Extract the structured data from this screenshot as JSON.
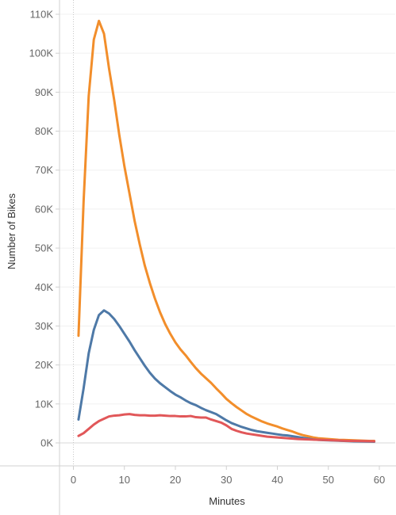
{
  "chart_data": {
    "type": "line",
    "xlabel": "Minutes",
    "ylabel": "Number of Bikes",
    "xlim": [
      -3,
      63
    ],
    "ylim": [
      -5000,
      112000
    ],
    "x_ticks": [
      0,
      10,
      20,
      30,
      40,
      50,
      60
    ],
    "x_tick_labels": [
      "0",
      "10",
      "20",
      "30",
      "40",
      "50",
      "60"
    ],
    "y_ticks": [
      0,
      10000,
      20000,
      30000,
      40000,
      50000,
      60000,
      70000,
      80000,
      90000,
      100000,
      110000
    ],
    "y_tick_labels": [
      "0K",
      "10K",
      "20K",
      "30K",
      "40K",
      "50K",
      "60K",
      "70K",
      "80K",
      "90K",
      "100K",
      "110K"
    ],
    "grid": "horizontal",
    "legend": "none",
    "series": [
      {
        "color": "#f28e2b",
        "x": [
          1,
          2,
          3,
          4,
          5,
          6,
          7,
          8,
          9,
          10,
          11,
          12,
          13,
          14,
          15,
          16,
          17,
          18,
          19,
          20,
          21,
          22,
          23,
          24,
          25,
          26,
          27,
          28,
          29,
          30,
          31,
          32,
          33,
          34,
          35,
          36,
          37,
          38,
          39,
          40,
          41,
          42,
          43,
          44,
          45,
          46,
          47,
          48,
          49,
          50,
          51,
          52,
          53,
          54,
          55,
          56,
          57,
          58,
          59
        ],
        "values": [
          27500,
          62000,
          89000,
          103500,
          108300,
          105000,
          96000,
          88000,
          79000,
          71000,
          64000,
          57000,
          51000,
          45500,
          41000,
          37000,
          33500,
          30500,
          28000,
          25800,
          24000,
          22500,
          20800,
          19200,
          17800,
          16600,
          15400,
          14000,
          12700,
          11300,
          10200,
          9200,
          8300,
          7400,
          6700,
          6100,
          5500,
          5000,
          4600,
          4200,
          3700,
          3300,
          2900,
          2400,
          2000,
          1700,
          1400,
          1200,
          1100,
          1000,
          900,
          800,
          750,
          700,
          650,
          600,
          550,
          500,
          500
        ]
      },
      {
        "color": "#4e79a7",
        "x": [
          1,
          2,
          3,
          4,
          5,
          6,
          7,
          8,
          9,
          10,
          11,
          12,
          13,
          14,
          15,
          16,
          17,
          18,
          19,
          20,
          21,
          22,
          23,
          24,
          25,
          26,
          27,
          28,
          29,
          30,
          31,
          32,
          33,
          34,
          35,
          36,
          37,
          38,
          39,
          40,
          41,
          42,
          43,
          44,
          45,
          46,
          47,
          48,
          49,
          50,
          51,
          52,
          53,
          54,
          55,
          56,
          57,
          58,
          59
        ],
        "values": [
          6000,
          14000,
          23000,
          29000,
          32800,
          34000,
          33200,
          31800,
          30000,
          28000,
          26000,
          23800,
          21800,
          19800,
          18000,
          16500,
          15300,
          14300,
          13300,
          12400,
          11700,
          10900,
          10200,
          9700,
          9000,
          8400,
          7900,
          7400,
          6600,
          5800,
          5100,
          4600,
          4100,
          3700,
          3300,
          3000,
          2800,
          2600,
          2400,
          2200,
          2000,
          1900,
          1700,
          1500,
          1300,
          1100,
          900,
          800,
          700,
          650,
          600,
          550,
          500,
          450,
          400,
          380,
          350,
          330,
          300
        ]
      },
      {
        "color": "#e15759",
        "x": [
          1,
          2,
          3,
          4,
          5,
          6,
          7,
          8,
          9,
          10,
          11,
          12,
          13,
          14,
          15,
          16,
          17,
          18,
          19,
          20,
          21,
          22,
          23,
          24,
          25,
          26,
          27,
          28,
          29,
          30,
          31,
          32,
          33,
          34,
          35,
          36,
          37,
          38,
          39,
          40,
          41,
          42,
          43,
          44,
          45,
          46,
          47,
          48,
          49,
          50,
          51,
          52,
          53,
          54,
          55,
          56,
          57,
          58,
          59
        ],
        "values": [
          1800,
          2500,
          3600,
          4700,
          5600,
          6200,
          6800,
          7000,
          7100,
          7300,
          7400,
          7200,
          7100,
          7100,
          7000,
          7000,
          7100,
          7000,
          6900,
          6900,
          6800,
          6800,
          6900,
          6600,
          6500,
          6500,
          6000,
          5600,
          5200,
          4500,
          3600,
          3100,
          2700,
          2400,
          2200,
          2000,
          1800,
          1600,
          1500,
          1400,
          1300,
          1200,
          1100,
          1000,
          950,
          900,
          850,
          800,
          750,
          700,
          650,
          600,
          550,
          520,
          500,
          480,
          450,
          430,
          400
        ]
      }
    ]
  }
}
